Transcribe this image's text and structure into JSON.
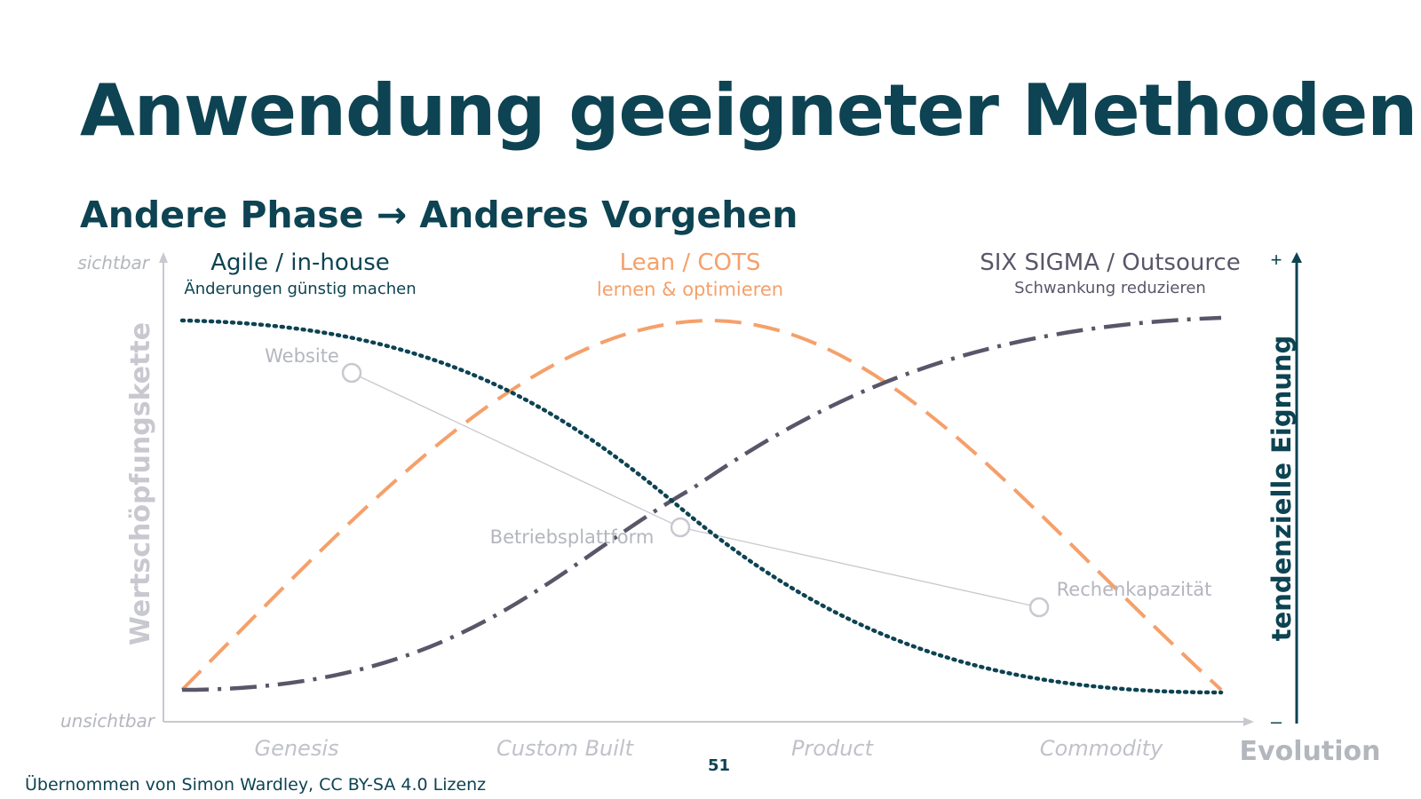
{
  "slide": {
    "title": "Anwendung geeigneter Methoden",
    "subtitle": "Andere Phase → Anderes Vorgehen",
    "footer": "Übernommen von Simon Wardley, CC BY-SA 4.0 Lizenz",
    "page_number": "51"
  },
  "diagram": {
    "y_axis": {
      "label": "Wertschöpfungskette",
      "top": "sichtbar",
      "bottom": "unsichtbar"
    },
    "x_axis": {
      "label": "Evolution",
      "stages": [
        "Genesis",
        "Custom Built",
        "Product",
        "Commodity"
      ]
    },
    "right_axis": {
      "label": "tendenzielle Eignung",
      "plus": "+",
      "minus": "–"
    },
    "methods": [
      {
        "name": "Agile / in-house",
        "desc": "Änderungen günstig machen",
        "color": "#0d4352",
        "style": "dotted"
      },
      {
        "name": "Lean / COTS",
        "desc": "lernen & optimieren",
        "color": "#f5a06a",
        "style": "dashed"
      },
      {
        "name": "SIX SIGMA / Outsource",
        "desc": "Schwankung reduzieren",
        "color": "#5a5669",
        "style": "dash-dot"
      }
    ],
    "components": [
      {
        "label": "Website"
      },
      {
        "label": "Betriebsplattform"
      },
      {
        "label": "Rechenkapazität"
      }
    ],
    "colors": {
      "axis": "#c8c8d0",
      "muted_text": "#b4b6be",
      "node": "#c8c8d0"
    }
  }
}
